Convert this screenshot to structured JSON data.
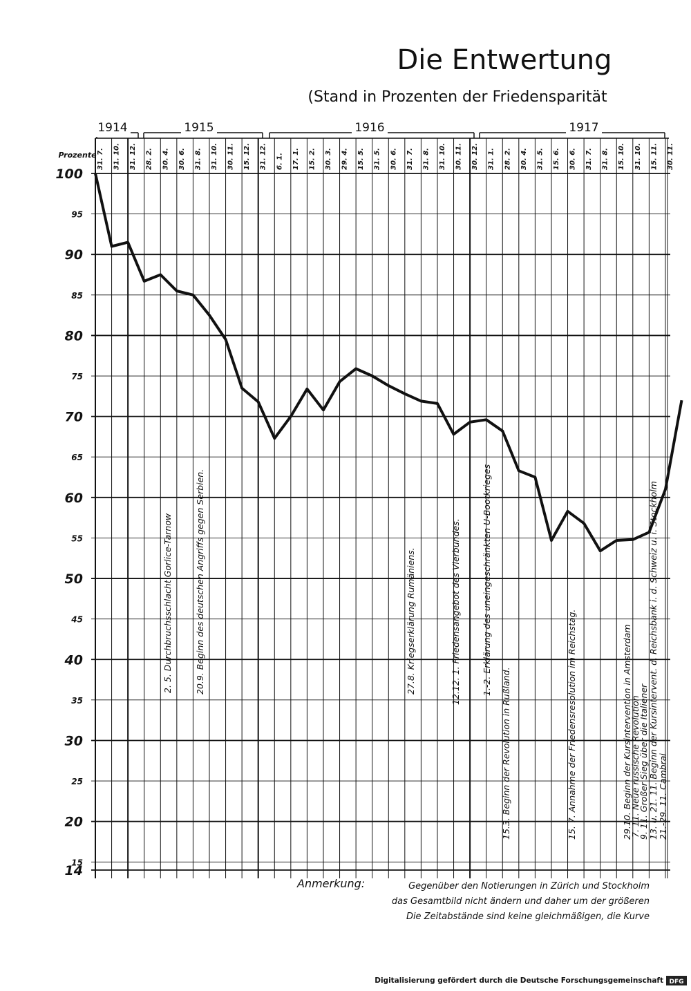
{
  "chart_data": {
    "type": "line",
    "title": "Die Entwertung",
    "subtitle": "(Stand in Prozenten der Friedensparität",
    "y_label": "Prozente",
    "years": [
      "1914",
      "1915",
      "1916",
      "1917"
    ],
    "categories": [
      "31. 7.",
      "31. 10.",
      "31. 12.",
      "28. 2.",
      "30. 4.",
      "30. 6.",
      "31. 8.",
      "31. 10.",
      "30. 11.",
      "15. 12.",
      "31. 12.",
      "6. 1.",
      "17. 1.",
      "15. 2.",
      "30. 3.",
      "29. 4.",
      "15. 5.",
      "31. 5.",
      "30. 6.",
      "31. 7.",
      "31. 8.",
      "31. 10.",
      "30. 11.",
      "30. 12.",
      "31. 1.",
      "28. 2.",
      "30. 4.",
      "31. 5.",
      "15. 6.",
      "30. 6.",
      "31. 7.",
      "31. 8.",
      "15. 10.",
      "31. 10.",
      "15. 11.",
      "30. 11.",
      null
    ],
    "values": [
      100,
      91,
      91.5,
      86.7,
      87.5,
      85.5,
      85,
      82.5,
      79.5,
      73.5,
      71.8,
      67.3,
      70,
      73.4,
      70.8,
      74.3,
      75.9,
      75,
      73.8,
      72.8,
      71.9,
      71.6,
      67.8,
      69.3,
      69.6,
      68.2,
      63.3,
      62.5,
      54.7,
      58.3,
      56.8,
      53.4,
      54.7,
      54.8,
      55.7,
      61,
      72
    ],
    "color": "#111111",
    "ylim": [
      14,
      100
    ],
    "yticks": [
      14,
      15,
      20,
      25,
      30,
      35,
      40,
      45,
      50,
      55,
      60,
      65,
      70,
      75,
      80,
      85,
      90,
      95,
      100
    ],
    "grid": true,
    "annotations": [
      "2. 5. Durchbruchsschlacht Gorlice-Tarnow",
      "20.9. Beginn des deutschen Angriffs gegen Serbien.",
      "27.8. Kriegserklärung Rumäniens.",
      "12.12. 1. Friedensangebot des Vierbundes.",
      "1.-2. Erklärung des uneingeschränkten U-Bootkrieges",
      "15.3. Beginn der Revolution in Rußland.",
      "15. 7. Annahme der Friedensresolution im Reichstag.",
      "29.10. Beginn der Kursintervention in Amsterdam",
      "7. 11. Neue russische Revolution",
      "9. 11. Großer Sieg über die Italiener",
      "13. u. 21. 11. Beginn der Kursintervent. d. Reichsbank i. d. Schweiz u. i. Stockholm",
      "21.-29. 11. Cambrai"
    ],
    "note": {
      "label": "Anmerkung:",
      "lines": [
        "Gegenüber den Notierungen in Zürich und Stockholm",
        "das Gesamtbild nicht ändern und daher um der größeren",
        "Die Zeitabstände sind keine gleichmäßigen, die Kurve"
      ]
    }
  },
  "footer": {
    "text": "Digitalisierung gefördert durch die Deutsche Forschungsgemeinschaft",
    "logo": "DFG"
  }
}
